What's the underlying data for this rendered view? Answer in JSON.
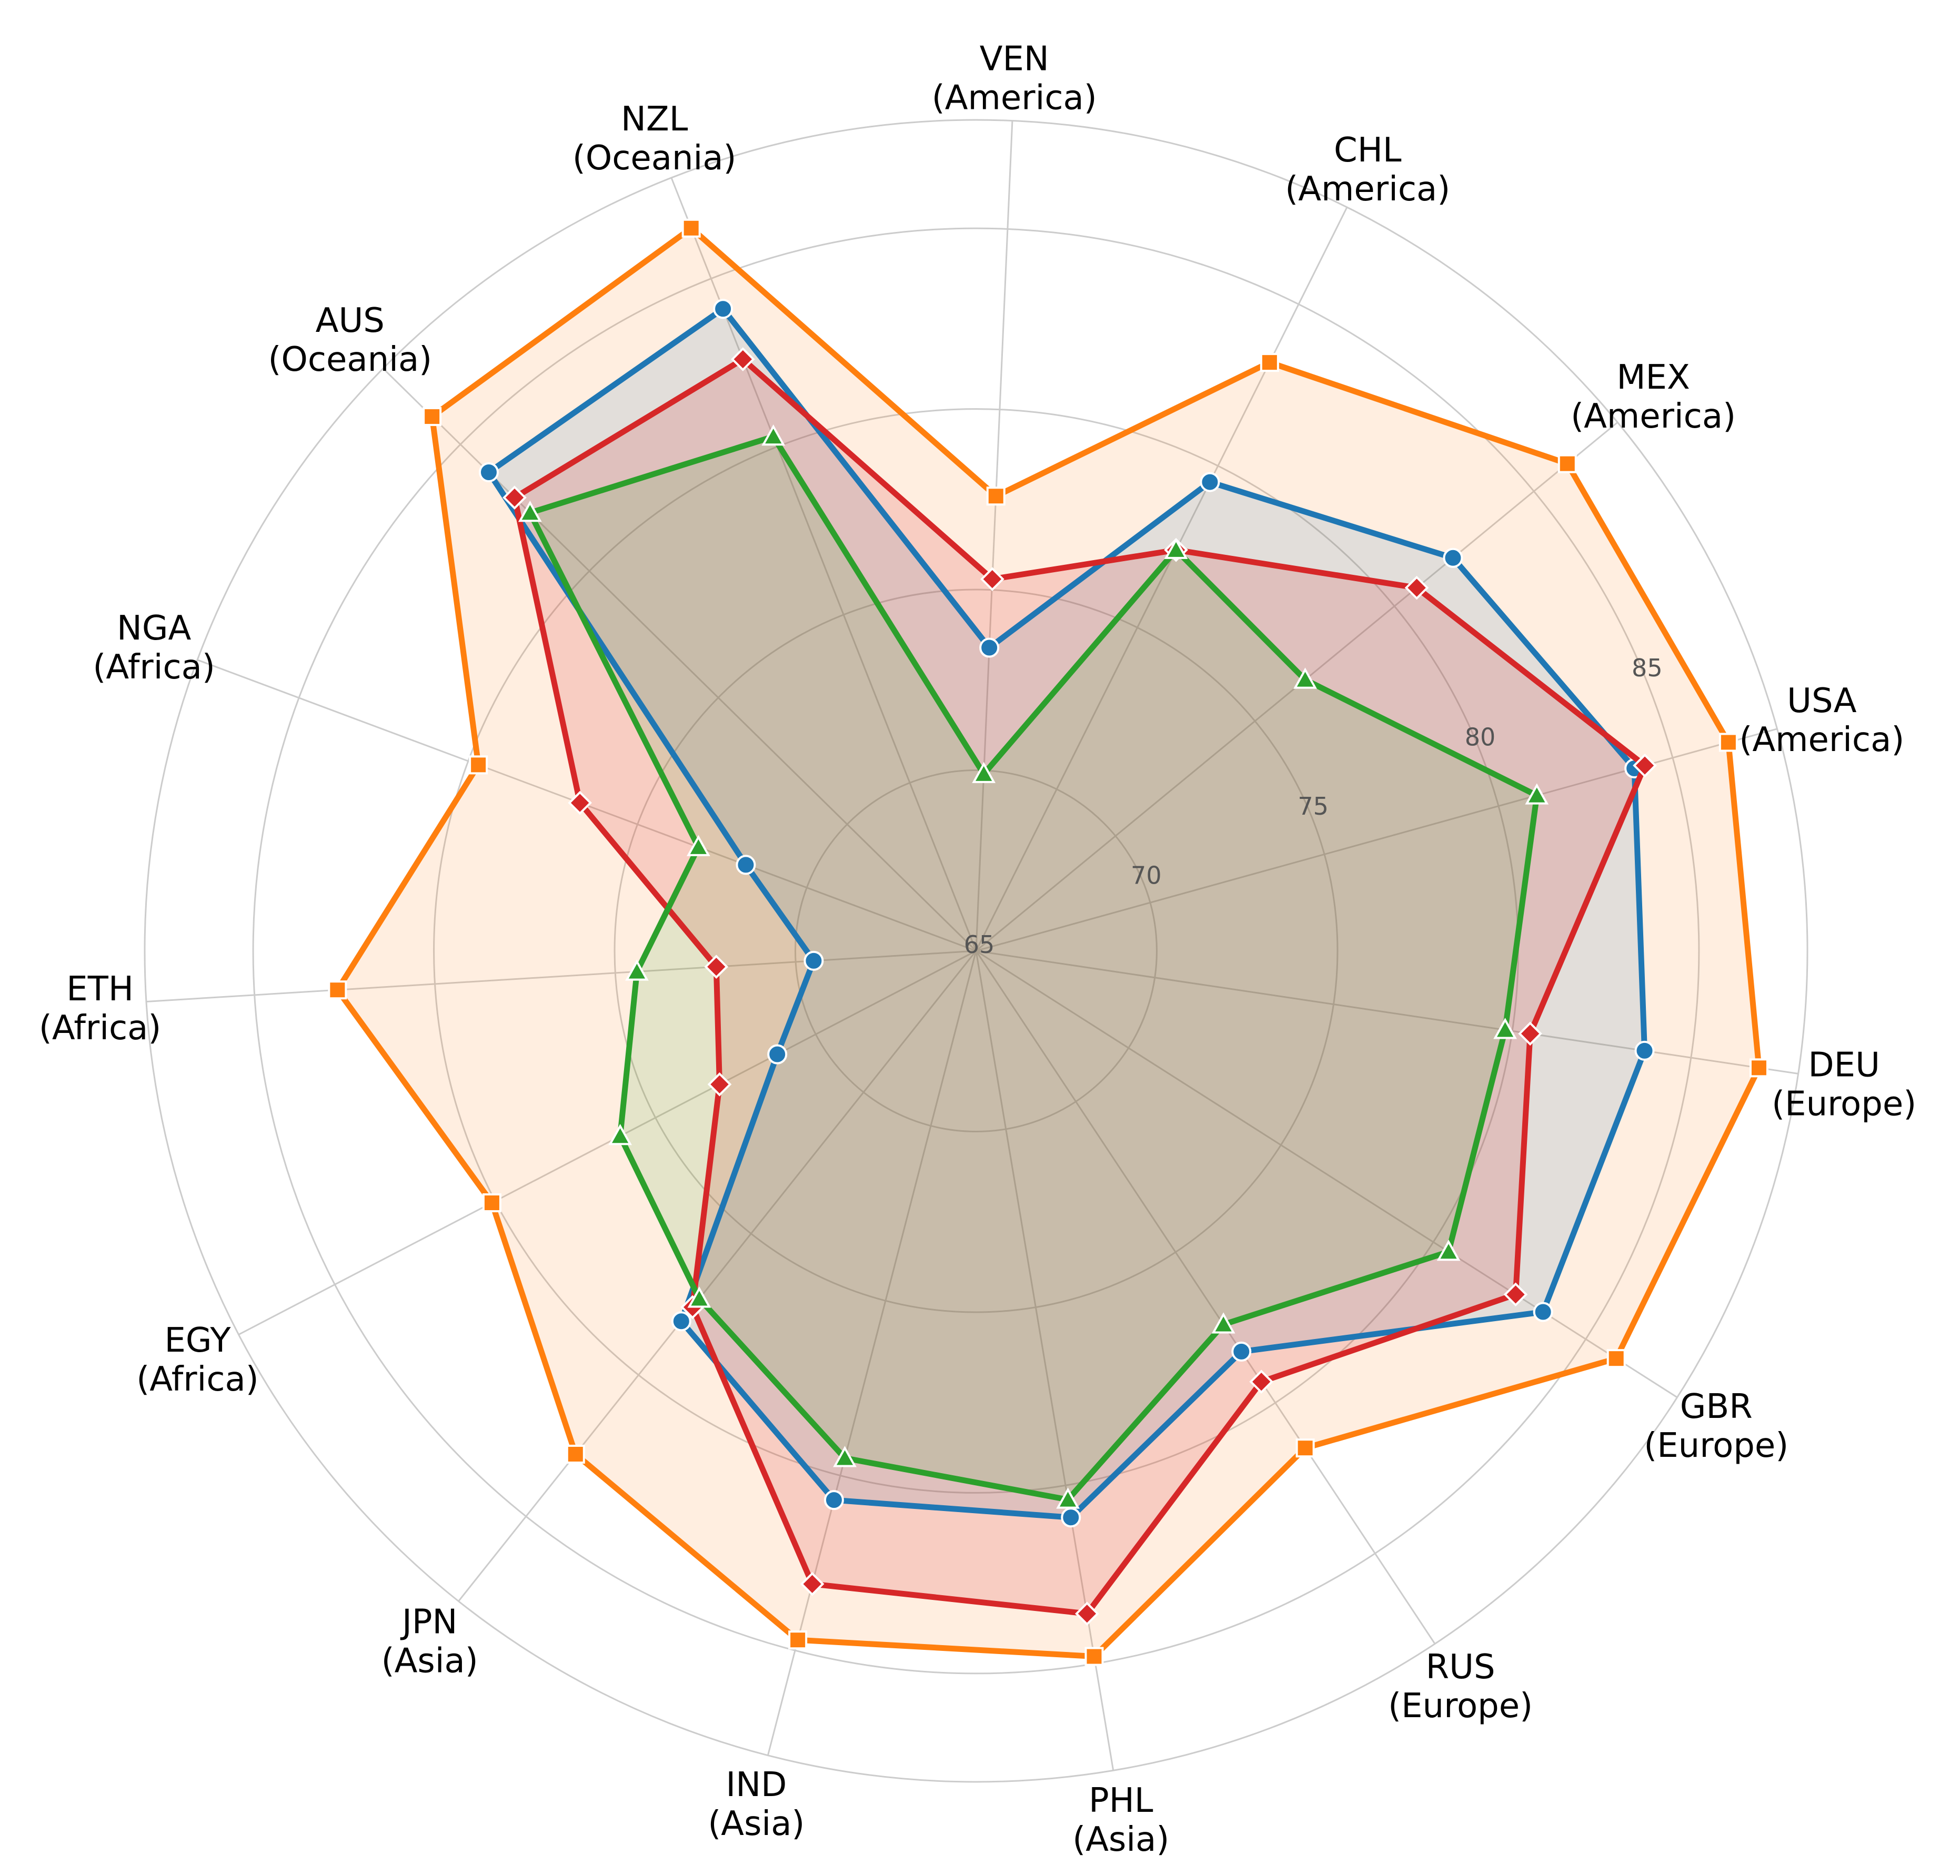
{
  "chart_data": {
    "type": "radar",
    "categories": [
      {
        "code": "USA",
        "region": "(America)"
      },
      {
        "code": "MEX",
        "region": "(America)"
      },
      {
        "code": "CHL",
        "region": "(America)"
      },
      {
        "code": "VEN",
        "region": "(America)"
      },
      {
        "code": "NZL",
        "region": "(Oceania)"
      },
      {
        "code": "AUS",
        "region": "(Oceania)"
      },
      {
        "code": "NGA",
        "region": "(Africa)"
      },
      {
        "code": "ETH",
        "region": "(Africa)"
      },
      {
        "code": "EGY",
        "region": "(Africa)"
      },
      {
        "code": "JPN",
        "region": "(Asia)"
      },
      {
        "code": "IND",
        "region": "(Asia)"
      },
      {
        "code": "PHL",
        "region": "(Asia)"
      },
      {
        "code": "RUS",
        "region": "(Europe)"
      },
      {
        "code": "GBR",
        "region": "(Europe)"
      },
      {
        "code": "DEU",
        "region": "(Europe)"
      }
    ],
    "r_ticks": [
      65,
      70,
      75,
      80,
      85
    ],
    "r_range": [
      65,
      88
    ],
    "grid": true,
    "legend": null,
    "series": [
      {
        "color": "#ff7f0e",
        "marker": "square",
        "values": [
          86.6,
          86.2,
          83.2,
          77.6,
          86.5,
          86.1,
          79.7,
          82.7,
          80.1,
          82.8,
          84.7,
          84.8,
          81.5,
          86.0,
          86.9
        ]
      },
      {
        "color": "#1f77b4",
        "marker": "circle",
        "values": [
          83.9,
          82.1,
          79.5,
          73.4,
          84.1,
          83.9,
          71.8,
          69.5,
          71.2,
          78.1,
          80.7,
          80.9,
          78.3,
          83.6,
          83.7
        ]
      },
      {
        "color": "#d62728",
        "marker": "diamond",
        "values": [
          84.2,
          80.8,
          77.4,
          75.3,
          82.6,
          82.9,
          76.7,
          72.2,
          73.0,
          77.6,
          83.1,
          83.6,
          79.3,
          82.7,
          80.5
        ]
      },
      {
        "color": "#2ca02c",
        "marker": "triangle",
        "values": [
          81.1,
          76.8,
          77.4,
          69.9,
          80.3,
          82.3,
          73.2,
          74.4,
          76.1,
          77.3,
          79.5,
          80.4,
          77.4,
          80.5,
          79.8
        ]
      }
    ]
  }
}
